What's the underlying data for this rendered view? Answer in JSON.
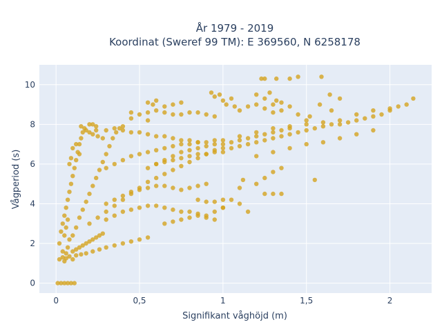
{
  "chart_data": {
    "type": "scatter",
    "title_line1": "År 1979 - 2019",
    "title_line2": "Koordinat (Sweref 99 TM): E 369560, N 6258178",
    "xlabel": "Signifikant våghöjd (m)",
    "ylabel": "Vågperiod (s)",
    "xlim": [
      -0.1,
      2.25
    ],
    "ylim": [
      -0.5,
      11
    ],
    "xticks": [
      0,
      0.5,
      1,
      1.5,
      2
    ],
    "xtick_labels": [
      "0",
      "0,5",
      "1",
      "1,5",
      "2"
    ],
    "yticks": [
      0,
      2,
      4,
      6,
      8,
      10
    ],
    "ytick_labels": [
      "0",
      "2",
      "4",
      "6",
      "8",
      "10"
    ],
    "grid": true,
    "marker_color": "#d4a421",
    "plot_bg": "#e5ecf6",
    "series": [
      {
        "points": [
          [
            0.01,
            0
          ],
          [
            0.03,
            0
          ],
          [
            0.05,
            0
          ],
          [
            0.07,
            0
          ],
          [
            0.09,
            0
          ],
          [
            0.11,
            0
          ],
          [
            0.02,
            1.2
          ],
          [
            0.04,
            1.3
          ],
          [
            0.06,
            1.25
          ],
          [
            0.08,
            1.35
          ],
          [
            0.1,
            1.2
          ],
          [
            0.12,
            1.4
          ],
          [
            0.15,
            1.45
          ],
          [
            0.18,
            1.5
          ],
          [
            0.22,
            1.6
          ],
          [
            0.26,
            1.7
          ],
          [
            0.3,
            1.8
          ],
          [
            0.35,
            1.9
          ],
          [
            0.4,
            2.0
          ],
          [
            0.45,
            2.1
          ],
          [
            0.5,
            2.2
          ],
          [
            0.55,
            2.3
          ],
          [
            0.02,
            2.0
          ],
          [
            0.03,
            2.6
          ],
          [
            0.04,
            3.0
          ],
          [
            0.05,
            3.4
          ],
          [
            0.06,
            3.8
          ],
          [
            0.07,
            4.2
          ],
          [
            0.08,
            4.6
          ],
          [
            0.09,
            5.0
          ],
          [
            0.1,
            5.4
          ],
          [
            0.11,
            5.8
          ],
          [
            0.12,
            6.2
          ],
          [
            0.13,
            6.6
          ],
          [
            0.14,
            7.0
          ],
          [
            0.15,
            7.3
          ],
          [
            0.16,
            7.6
          ],
          [
            0.17,
            7.8
          ],
          [
            0.2,
            8.0
          ],
          [
            0.24,
            7.9
          ],
          [
            0.1,
            2.4
          ],
          [
            0.12,
            2.8
          ],
          [
            0.14,
            3.3
          ],
          [
            0.16,
            3.7
          ],
          [
            0.18,
            4.1
          ],
          [
            0.2,
            4.5
          ],
          [
            0.22,
            4.9
          ],
          [
            0.24,
            5.3
          ],
          [
            0.26,
            5.7
          ],
          [
            0.28,
            6.1
          ],
          [
            0.3,
            6.5
          ],
          [
            0.32,
            6.9
          ],
          [
            0.34,
            7.3
          ],
          [
            0.36,
            7.6
          ],
          [
            0.38,
            7.8
          ],
          [
            0.4,
            7.9
          ],
          [
            0.2,
            3.0
          ],
          [
            0.25,
            3.3
          ],
          [
            0.3,
            3.6
          ],
          [
            0.35,
            3.9
          ],
          [
            0.4,
            4.2
          ],
          [
            0.45,
            4.5
          ],
          [
            0.5,
            4.8
          ],
          [
            0.55,
            5.1
          ],
          [
            0.6,
            5.3
          ],
          [
            0.65,
            5.5
          ],
          [
            0.7,
            5.7
          ],
          [
            0.75,
            5.9
          ],
          [
            0.8,
            6.1
          ],
          [
            0.85,
            6.3
          ],
          [
            0.9,
            6.5
          ],
          [
            0.95,
            6.7
          ],
          [
            1.0,
            6.8
          ],
          [
            0.3,
            5.8
          ],
          [
            0.35,
            6.0
          ],
          [
            0.4,
            6.2
          ],
          [
            0.45,
            6.4
          ],
          [
            0.5,
            6.5
          ],
          [
            0.55,
            6.6
          ],
          [
            0.6,
            6.7
          ],
          [
            0.65,
            6.8
          ],
          [
            0.7,
            6.9
          ],
          [
            0.75,
            7.0
          ],
          [
            0.8,
            7.0
          ],
          [
            0.85,
            7.1
          ],
          [
            0.9,
            7.1
          ],
          [
            0.95,
            7.2
          ],
          [
            1.0,
            7.2
          ],
          [
            0.6,
            6.0
          ],
          [
            0.65,
            6.2
          ],
          [
            0.7,
            6.4
          ],
          [
            0.75,
            6.6
          ],
          [
            0.8,
            6.7
          ],
          [
            0.85,
            6.8
          ],
          [
            0.9,
            6.9
          ],
          [
            0.95,
            7.0
          ],
          [
            1.0,
            7.0
          ],
          [
            1.05,
            7.1
          ],
          [
            1.1,
            7.2
          ],
          [
            1.15,
            7.3
          ],
          [
            1.2,
            7.4
          ],
          [
            1.25,
            7.5
          ],
          [
            1.3,
            7.6
          ],
          [
            1.35,
            7.7
          ],
          [
            1.4,
            7.8
          ],
          [
            1.0,
            6.6
          ],
          [
            1.05,
            6.8
          ],
          [
            1.1,
            6.9
          ],
          [
            1.15,
            7.0
          ],
          [
            1.2,
            7.1
          ],
          [
            1.25,
            7.2
          ],
          [
            1.3,
            7.3
          ],
          [
            1.35,
            7.4
          ],
          [
            1.4,
            7.5
          ],
          [
            1.45,
            7.6
          ],
          [
            1.5,
            7.7
          ],
          [
            1.55,
            7.8
          ],
          [
            1.6,
            7.9
          ],
          [
            1.65,
            8.0
          ],
          [
            1.7,
            8.0
          ],
          [
            1.75,
            8.1
          ],
          [
            1.8,
            8.2
          ],
          [
            1.85,
            8.3
          ],
          [
            1.9,
            8.4
          ],
          [
            1.95,
            8.5
          ],
          [
            2.0,
            8.7
          ],
          [
            2.05,
            8.9
          ],
          [
            2.1,
            9.0
          ],
          [
            2.14,
            9.3
          ],
          [
            1.1,
            7.4
          ],
          [
            1.2,
            7.6
          ],
          [
            1.3,
            7.8
          ],
          [
            1.4,
            7.9
          ],
          [
            1.5,
            8.0
          ],
          [
            1.6,
            8.1
          ],
          [
            1.7,
            8.2
          ],
          [
            1.8,
            8.5
          ],
          [
            1.9,
            8.7
          ],
          [
            2.0,
            8.8
          ],
          [
            1.2,
            6.4
          ],
          [
            1.3,
            6.6
          ],
          [
            1.4,
            6.8
          ],
          [
            1.5,
            7.0
          ],
          [
            1.6,
            7.1
          ],
          [
            1.7,
            7.3
          ],
          [
            1.8,
            7.5
          ],
          [
            1.9,
            7.7
          ],
          [
            0.45,
            8.6
          ],
          [
            0.5,
            8.5
          ],
          [
            0.55,
            8.6
          ],
          [
            0.6,
            8.7
          ],
          [
            0.65,
            8.6
          ],
          [
            0.7,
            8.5
          ],
          [
            0.75,
            8.5
          ],
          [
            0.8,
            8.6
          ],
          [
            0.85,
            8.6
          ],
          [
            0.9,
            8.5
          ],
          [
            0.95,
            8.4
          ],
          [
            0.45,
            8.3
          ],
          [
            0.55,
            8.2
          ],
          [
            0.3,
            7.7
          ],
          [
            0.35,
            7.8
          ],
          [
            0.4,
            7.7
          ],
          [
            0.45,
            7.6
          ],
          [
            0.5,
            7.6
          ],
          [
            0.55,
            7.5
          ],
          [
            0.6,
            7.4
          ],
          [
            0.65,
            7.4
          ],
          [
            0.7,
            7.3
          ],
          [
            0.75,
            7.2
          ],
          [
            0.8,
            7.2
          ],
          [
            0.85,
            7.1
          ],
          [
            0.3,
            4.0
          ],
          [
            0.35,
            4.2
          ],
          [
            0.4,
            4.4
          ],
          [
            0.45,
            4.6
          ],
          [
            0.5,
            4.7
          ],
          [
            0.55,
            4.8
          ],
          [
            0.6,
            4.9
          ],
          [
            0.65,
            4.9
          ],
          [
            0.7,
            4.8
          ],
          [
            0.75,
            4.7
          ],
          [
            0.8,
            4.8
          ],
          [
            0.85,
            4.9
          ],
          [
            0.9,
            5.0
          ],
          [
            0.3,
            3.2
          ],
          [
            0.35,
            3.4
          ],
          [
            0.4,
            3.6
          ],
          [
            0.45,
            3.7
          ],
          [
            0.5,
            3.8
          ],
          [
            0.55,
            3.9
          ],
          [
            0.6,
            3.9
          ],
          [
            0.65,
            3.8
          ],
          [
            0.7,
            3.7
          ],
          [
            0.75,
            3.6
          ],
          [
            0.8,
            3.6
          ],
          [
            0.85,
            3.5
          ],
          [
            0.9,
            3.4
          ],
          [
            0.55,
            5.8
          ],
          [
            0.6,
            6.0
          ],
          [
            0.65,
            6.1
          ],
          [
            0.7,
            6.2
          ],
          [
            0.75,
            6.3
          ],
          [
            0.8,
            6.4
          ],
          [
            0.85,
            6.5
          ],
          [
            0.9,
            6.5
          ],
          [
            0.95,
            6.6
          ],
          [
            0.65,
            3.0
          ],
          [
            0.7,
            3.1
          ],
          [
            0.75,
            3.2
          ],
          [
            0.8,
            3.3
          ],
          [
            0.85,
            3.4
          ],
          [
            0.9,
            3.3
          ],
          [
            0.95,
            3.2
          ],
          [
            0.85,
            4.2
          ],
          [
            0.9,
            4.1
          ],
          [
            0.95,
            4.1
          ],
          [
            1.0,
            4.2
          ],
          [
            1.05,
            4.2
          ],
          [
            1.1,
            4.0
          ],
          [
            0.95,
            3.6
          ],
          [
            1.0,
            3.8
          ],
          [
            1.1,
            4.8
          ],
          [
            1.12,
            5.2
          ],
          [
            1.2,
            5.0
          ],
          [
            1.25,
            5.3
          ],
          [
            1.3,
            5.6
          ],
          [
            1.35,
            5.8
          ],
          [
            1.3,
            4.5
          ],
          [
            1.35,
            4.5
          ],
          [
            1.15,
            8.9
          ],
          [
            1.2,
            9.0
          ],
          [
            1.25,
            8.8
          ],
          [
            1.3,
            8.6
          ],
          [
            1.35,
            8.7
          ],
          [
            1.4,
            8.9
          ],
          [
            1.45,
            8.5
          ],
          [
            1.5,
            8.2
          ],
          [
            0.93,
            9.6
          ],
          [
            0.95,
            9.4
          ],
          [
            1.0,
            9.2
          ],
          [
            1.05,
            9.3
          ],
          [
            0.98,
            9.5
          ],
          [
            1.02,
            9.0
          ],
          [
            1.07,
            8.9
          ],
          [
            1.1,
            8.7
          ],
          [
            1.2,
            9.5
          ],
          [
            1.25,
            9.3
          ],
          [
            1.3,
            9.0
          ],
          [
            1.35,
            9.1
          ],
          [
            1.28,
            9.6
          ],
          [
            1.32,
            9.2
          ],
          [
            1.23,
            10.3
          ],
          [
            1.25,
            10.3
          ],
          [
            1.32,
            10.3
          ],
          [
            1.4,
            10.3
          ],
          [
            1.45,
            10.4
          ],
          [
            1.59,
            10.4
          ],
          [
            1.7,
            9.3
          ],
          [
            1.64,
            9.5
          ],
          [
            1.58,
            9.0
          ],
          [
            1.65,
            8.7
          ],
          [
            1.52,
            8.4
          ],
          [
            0.55,
            9.1
          ],
          [
            0.6,
            9.2
          ],
          [
            0.65,
            8.9
          ],
          [
            0.7,
            9.0
          ],
          [
            0.75,
            9.1
          ],
          [
            0.58,
            9.0
          ],
          [
            0.15,
            7.9
          ],
          [
            0.18,
            7.7
          ],
          [
            0.2,
            7.6
          ],
          [
            0.22,
            7.5
          ],
          [
            0.25,
            7.4
          ],
          [
            0.28,
            7.3
          ],
          [
            0.22,
            8.0
          ],
          [
            0.24,
            7.7
          ],
          [
            0.1,
            6.8
          ],
          [
            0.12,
            7.0
          ],
          [
            0.14,
            6.5
          ],
          [
            0.08,
            6.0
          ],
          [
            0.09,
            6.3
          ],
          [
            1.15,
            3.6
          ],
          [
            1.25,
            4.5
          ],
          [
            1.0,
            3.8
          ],
          [
            1.55,
            5.2
          ],
          [
            0.1,
            1.6
          ],
          [
            0.12,
            1.7
          ],
          [
            0.14,
            1.8
          ],
          [
            0.16,
            1.9
          ],
          [
            0.18,
            2.0
          ],
          [
            0.2,
            2.1
          ],
          [
            0.22,
            2.2
          ],
          [
            0.24,
            2.3
          ],
          [
            0.26,
            2.4
          ],
          [
            0.28,
            2.5
          ],
          [
            0.05,
            1.1
          ],
          [
            0.06,
            1.5
          ],
          [
            0.07,
            1.8
          ],
          [
            0.08,
            2.2
          ],
          [
            0.04,
            1.6
          ],
          [
            0.05,
            2.4
          ],
          [
            0.06,
            2.8
          ],
          [
            0.07,
            3.2
          ]
        ]
      }
    ]
  }
}
